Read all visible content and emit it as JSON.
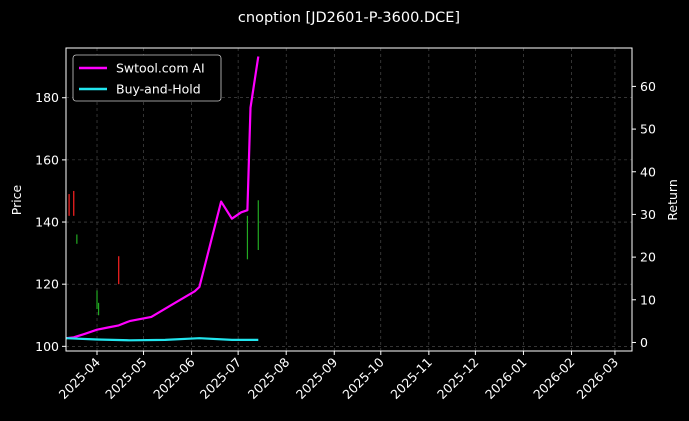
{
  "chart_data": {
    "type": "line",
    "title": "cnoption [JD2601-P-3600.DCE]",
    "ylabel": "Price",
    "y2label": "Return",
    "xlim": [
      "2025-03-12",
      "2026-03-12"
    ],
    "ylim": [
      98.5,
      196
    ],
    "y2lim": [
      -2,
      69
    ],
    "x_ticks": [
      "2025-04-01",
      "2025-05-01",
      "2025-06-01",
      "2025-07-01",
      "2025-08-01",
      "2025-09-01",
      "2025-10-01",
      "2025-11-01",
      "2025-12-01",
      "2026-01-01",
      "2026-02-01",
      "2026-03-01"
    ],
    "x_tick_labels": [
      "2025-04",
      "2025-05",
      "2025-06",
      "2025-07",
      "2025-08",
      "2025-09",
      "2025-10",
      "2025-11",
      "2025-12",
      "2026-01",
      "2026-02",
      "2026-03"
    ],
    "y_ticks": [
      100,
      120,
      140,
      160,
      180
    ],
    "y2_ticks": [
      0,
      10,
      20,
      30,
      40,
      50,
      60
    ],
    "grid": true,
    "legend_position": "top-left",
    "background": "#000000",
    "series": [
      {
        "name": "Swtool.com AI",
        "axis": "right",
        "color": "#ff00ff",
        "x": [
          "2025-03-12",
          "2025-03-17",
          "2025-03-24",
          "2025-04-01",
          "2025-04-08",
          "2025-04-15",
          "2025-04-22",
          "2025-05-06",
          "2025-05-20",
          "2025-06-03",
          "2025-06-06",
          "2025-06-20",
          "2025-06-27",
          "2025-07-03",
          "2025-07-07",
          "2025-07-09",
          "2025-07-14"
        ],
        "values": [
          1,
          1.2,
          2,
          3,
          3.5,
          4,
          5,
          6,
          9,
          12,
          13,
          33,
          29,
          30.5,
          31,
          55,
          67
        ]
      },
      {
        "name": "Buy-and-Hold",
        "axis": "right",
        "color": "#22e5ee",
        "x": [
          "2025-03-12",
          "2025-04-01",
          "2025-04-22",
          "2025-05-15",
          "2025-06-06",
          "2025-06-27",
          "2025-07-14"
        ],
        "values": [
          1.0,
          0.7,
          0.5,
          0.6,
          1.0,
          0.6,
          0.6
        ]
      }
    ],
    "candles": [
      {
        "x": "2025-03-14",
        "low": 142,
        "high": 149,
        "color": "#ff2222"
      },
      {
        "x": "2025-03-17",
        "low": 142,
        "high": 150,
        "color": "#ff2222"
      },
      {
        "x": "2025-03-19",
        "low": 133,
        "high": 136,
        "color": "#22aa22"
      },
      {
        "x": "2025-04-01",
        "low": 112,
        "high": 118,
        "color": "#22aa22"
      },
      {
        "x": "2025-04-02",
        "low": 110,
        "high": 114,
        "color": "#22aa22"
      },
      {
        "x": "2025-04-15",
        "low": 120,
        "high": 129,
        "color": "#ff2222"
      },
      {
        "x": "2025-07-07",
        "low": 128,
        "high": 142,
        "color": "#22aa22"
      },
      {
        "x": "2025-07-14",
        "low": 131,
        "high": 147,
        "color": "#22aa22"
      }
    ]
  }
}
